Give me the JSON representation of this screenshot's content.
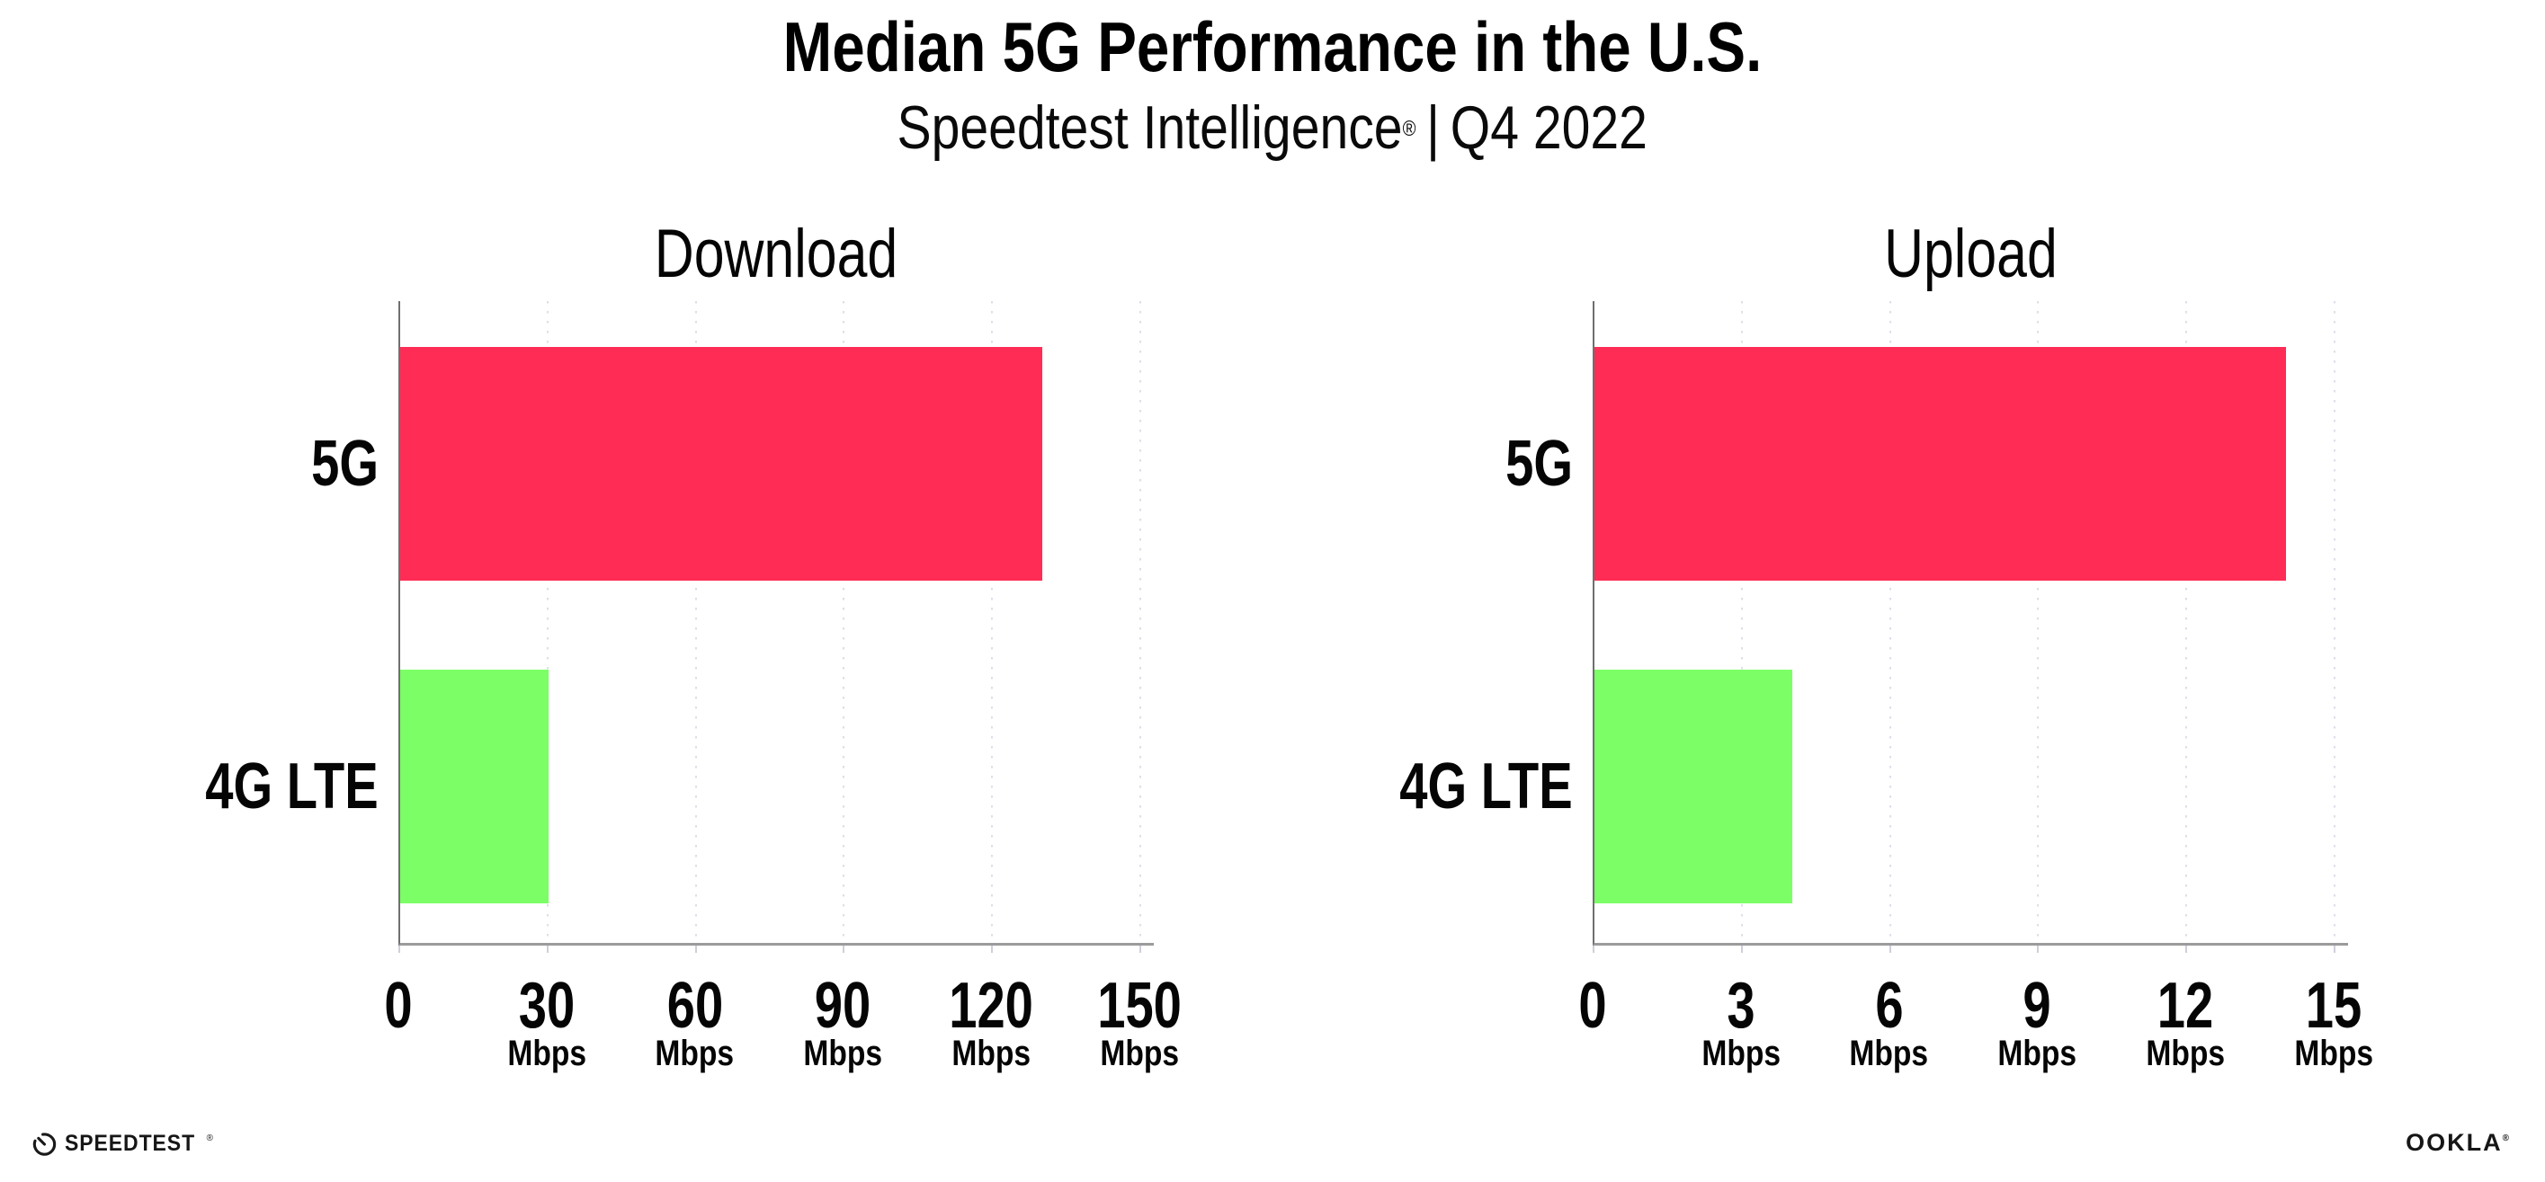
{
  "header": {
    "title": "Median 5G Performance in the U.S.",
    "subtitle": {
      "brand": "Speedtest Intelligence",
      "registered": "®",
      "separator": "|",
      "period": "Q4 2022"
    }
  },
  "footer": {
    "speedtest": {
      "label": "SPEEDTEST",
      "mark": "®"
    },
    "ookla": {
      "label": "OOKLA",
      "mark": "®"
    }
  },
  "colors": {
    "bar_5g": "#FF2D55",
    "bar_4g_lte": "#7CFF66",
    "gridline": "#dedee8",
    "x_axis": "#9b9b9b",
    "y_axis": "#6f6f6f",
    "text": "#050505"
  },
  "chart_data": [
    {
      "type": "bar",
      "orientation": "horizontal",
      "title": "Download",
      "categories": [
        "5G",
        "4G LTE"
      ],
      "values": [
        130,
        30
      ],
      "unit": "Mbps",
      "xlim": [
        0,
        150
      ],
      "xticks": [
        0,
        30,
        60,
        90,
        120,
        150
      ],
      "bar_colors": [
        "#FF2D55",
        "#7CFF66"
      ],
      "grid": "vertical-dotted",
      "legend": "none"
    },
    {
      "type": "bar",
      "orientation": "horizontal",
      "title": "Upload",
      "categories": [
        "5G",
        "4G LTE"
      ],
      "values": [
        14,
        4
      ],
      "unit": "Mbps",
      "xlim": [
        0,
        15
      ],
      "xticks": [
        0,
        3,
        6,
        9,
        12,
        15
      ],
      "bar_colors": [
        "#FF2D55",
        "#7CFF66"
      ],
      "grid": "vertical-dotted",
      "legend": "none"
    }
  ]
}
